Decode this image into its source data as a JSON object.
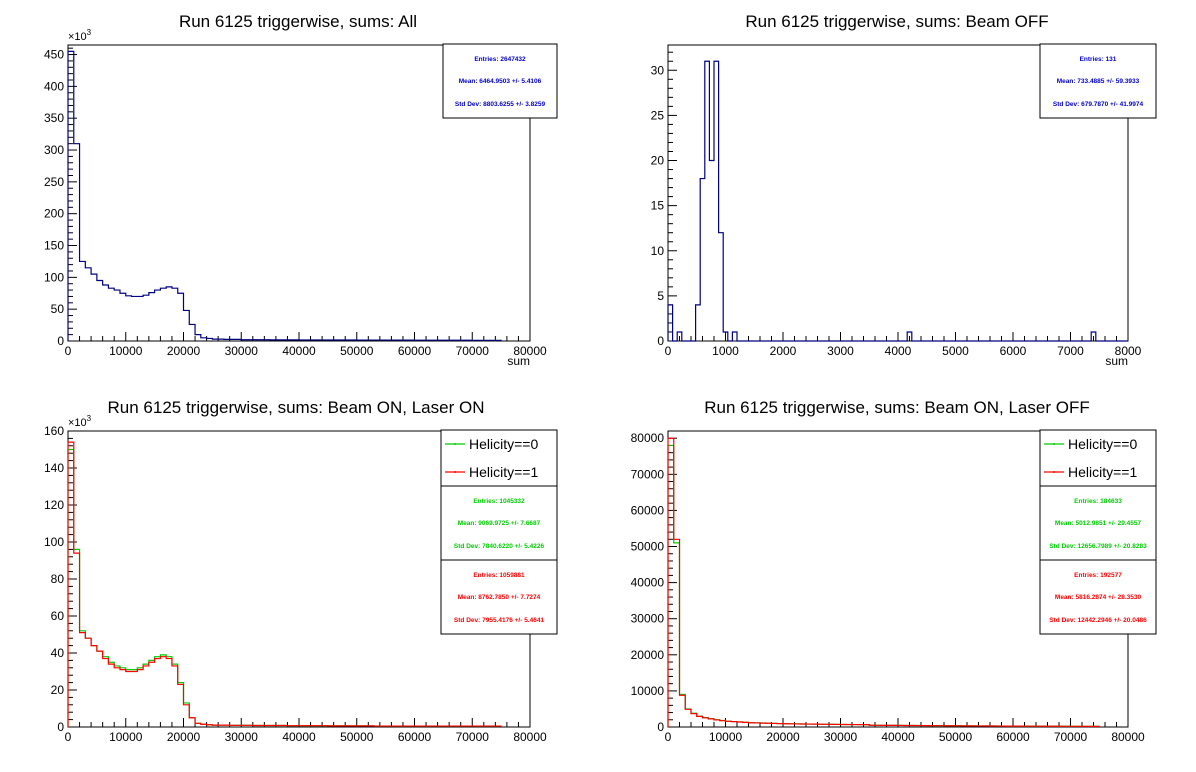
{
  "chart_data": [
    {
      "type": "histogram",
      "title": "Run 6125 triggerwise, sums: All",
      "xlabel": "sum",
      "ylabel": "",
      "xlim": [
        0,
        80000
      ],
      "ylim": [
        0,
        465
      ],
      "x_ticks": [
        "0",
        "10000",
        "20000",
        "30000",
        "40000",
        "50000",
        "60000",
        "70000",
        "80000"
      ],
      "y_ticks": [
        "0",
        "50",
        "100",
        "150",
        "200",
        "250",
        "300",
        "350",
        "400",
        "450"
      ],
      "exponent": "×10",
      "exponent_power": "3",
      "bin_start": 0,
      "bin_width": 1000,
      "series": [
        {
          "color": "#000080",
          "values": [
            455,
            310,
            125,
            115,
            105,
            95,
            88,
            83,
            80,
            75,
            71,
            70,
            70,
            72,
            76,
            80,
            83,
            85,
            83,
            75,
            48,
            26,
            10,
            5,
            4,
            3,
            3,
            2.5,
            2.5,
            2.5,
            2,
            2,
            2,
            2,
            2,
            1.8,
            1.8,
            1.8,
            1.8,
            1.8,
            1.7,
            1.7,
            1.7,
            1.7,
            1.7,
            1.6,
            1.6,
            1.6,
            1.6,
            1.6,
            1.5,
            1.5,
            1.5,
            1.5,
            1.5,
            1.4,
            1.4,
            1.4,
            1.4,
            1.4,
            1.3,
            1.3,
            1.3,
            1.3,
            1.3,
            1.2,
            1.2,
            1.2,
            1.2,
            1.2,
            1.1,
            1.1,
            1.1,
            1.1,
            1.1
          ]
        }
      ],
      "stats_boxes": [
        {
          "color": "#0000cc",
          "entries": "Entries: 2647432",
          "mean": "Mean: 6464.9503 +/- 5.4106",
          "stddev": "Std Dev: 8803.6255 +/- 3.8259"
        }
      ]
    },
    {
      "type": "histogram",
      "title": "Run 6125 triggerwise, sums: Beam OFF",
      "xlabel": "sum",
      "ylabel": "",
      "xlim": [
        0,
        8000
      ],
      "ylim": [
        0,
        32.8
      ],
      "x_ticks": [
        "0",
        "1000",
        "2000",
        "3000",
        "4000",
        "5000",
        "6000",
        "7000",
        "8000"
      ],
      "y_ticks": [
        "0",
        "5",
        "10",
        "15",
        "20",
        "25",
        "30"
      ],
      "bin_start": 0,
      "bin_width": 80,
      "series": [
        {
          "color": "#000080",
          "values": [
            4,
            0,
            1,
            0,
            0,
            0,
            4,
            18,
            31,
            20,
            31,
            12,
            1,
            0,
            1,
            0,
            0,
            0,
            0,
            0,
            0,
            0,
            0,
            0,
            0,
            0,
            0,
            0,
            0,
            0,
            0,
            0,
            0,
            0,
            0,
            0,
            0,
            0,
            0,
            0,
            0,
            0,
            0,
            0,
            0,
            0,
            0,
            0,
            0,
            0,
            0,
            0,
            1,
            0,
            0,
            0,
            0,
            0,
            0,
            0,
            0,
            0,
            0,
            0,
            0,
            0,
            0,
            0,
            0,
            0,
            0,
            0,
            0,
            0,
            0,
            0,
            0,
            0,
            0,
            0,
            0,
            0,
            0,
            0,
            0,
            0,
            0,
            0,
            0,
            0,
            0,
            0,
            1,
            0,
            0,
            0,
            0,
            0,
            0,
            0
          ]
        }
      ],
      "stats_boxes": [
        {
          "color": "#0000cc",
          "entries": "Entries: 131",
          "mean": "Mean: 733.4885 +/- 59.3933",
          "stddev": "Std Dev: 679.7870 +/- 41.9974"
        }
      ]
    },
    {
      "type": "histogram",
      "title": "Run 6125 triggerwise, sums: Beam ON, Laser ON",
      "xlabel": "",
      "ylabel": "",
      "xlim": [
        0,
        80000
      ],
      "ylim": [
        0,
        160
      ],
      "x_ticks": [
        "0",
        "10000",
        "20000",
        "30000",
        "40000",
        "50000",
        "60000",
        "70000",
        "80000"
      ],
      "y_ticks": [
        "0",
        "20",
        "40",
        "60",
        "80",
        "100",
        "120",
        "140",
        "160"
      ],
      "exponent": "×10",
      "exponent_power": "3",
      "bin_start": 0,
      "bin_width": 1000,
      "legend": [
        "Helicity==0",
        "Helicity==1"
      ],
      "series": [
        {
          "name": "Helicity==0",
          "color": "#00cc00",
          "values": [
            150,
            96,
            52,
            48,
            44,
            41,
            38,
            35,
            33,
            32,
            31,
            31,
            32,
            34,
            36,
            38,
            39,
            38,
            34,
            24,
            13,
            5,
            2,
            1.5,
            1.2,
            1,
            1,
            1,
            0.9,
            0.9,
            0.9,
            0.9,
            0.8,
            0.8,
            0.8,
            0.8,
            0.8,
            0.8,
            0.7,
            0.7,
            0.7,
            0.7,
            0.7,
            0.7,
            0.7,
            0.6,
            0.6,
            0.6,
            0.6,
            0.6,
            0.6,
            0.6,
            0.6,
            0.5,
            0.5,
            0.5,
            0.5,
            0.5,
            0.5,
            0.5,
            0.5,
            0.5,
            0.5,
            0.5,
            0.5,
            0.5,
            0.5,
            0.5,
            0.5,
            0.5,
            0.5,
            0.5,
            0.5,
            0.5,
            0.5
          ]
        },
        {
          "name": "Helicity==1",
          "color": "#ff0000",
          "values": [
            154,
            94,
            51,
            48,
            44,
            41,
            37,
            34,
            32,
            31,
            30,
            30,
            31,
            33,
            35,
            37,
            38,
            37,
            33,
            23,
            12,
            5,
            2,
            1.5,
            1.2,
            1,
            1,
            1,
            0.9,
            0.9,
            0.9,
            0.9,
            0.8,
            0.8,
            0.8,
            0.8,
            0.8,
            0.8,
            0.7,
            0.7,
            0.7,
            0.7,
            0.7,
            0.7,
            0.7,
            0.6,
            0.6,
            0.6,
            0.6,
            0.6,
            0.6,
            0.6,
            0.6,
            0.5,
            0.5,
            0.5,
            0.5,
            0.5,
            0.5,
            0.5,
            0.5,
            0.5,
            0.5,
            0.5,
            0.5,
            0.5,
            0.5,
            0.5,
            0.5,
            0.5,
            0.5,
            0.5,
            0.5,
            0.5,
            0.5
          ]
        }
      ],
      "stats_boxes": [
        {
          "color": "#00cc00",
          "entries": "Entries: 1045332",
          "mean": "Mean: 9069.9725 +/- 7.6687",
          "stddev": "Std Dev: 7840.6220 +/- 5.4226"
        },
        {
          "color": "#ff0000",
          "entries": "Entries: 1059881",
          "mean": "Mean: 8762.7850 +/- 7.7274",
          "stddev": "Std Dev: 7955.4176 +/- 5.4641"
        }
      ]
    },
    {
      "type": "histogram",
      "title": "Run 6125 triggerwise, sums: Beam ON, Laser OFF",
      "xlabel": "",
      "ylabel": "",
      "xlim": [
        0,
        80000
      ],
      "ylim": [
        0,
        82000
      ],
      "x_ticks": [
        "0",
        "10000",
        "20000",
        "30000",
        "40000",
        "50000",
        "60000",
        "70000",
        "80000"
      ],
      "y_ticks": [
        "0",
        "10000",
        "20000",
        "30000",
        "40000",
        "50000",
        "60000",
        "70000",
        "80000"
      ],
      "bin_start": 0,
      "bin_width": 1000,
      "legend": [
        "Helicity==0",
        "Helicity==1"
      ],
      "series": [
        {
          "name": "Helicity==0",
          "color": "#00cc00",
          "values": [
            78000,
            51000,
            9000,
            5000,
            3800,
            3000,
            2600,
            2300,
            2000,
            1800,
            1600,
            1500,
            1400,
            1300,
            1200,
            1150,
            1100,
            1050,
            1000,
            950,
            900,
            880,
            860,
            840,
            820,
            800,
            780,
            760,
            740,
            720,
            700,
            690,
            680,
            670,
            660,
            500,
            480,
            470,
            460,
            450,
            440,
            430,
            420,
            410,
            400,
            390,
            380,
            370,
            360,
            350,
            340,
            330,
            320,
            310,
            300,
            290,
            280,
            270,
            260,
            250,
            245,
            240,
            235,
            230,
            225,
            220,
            215,
            210,
            205,
            200,
            195,
            190,
            185,
            180,
            175
          ]
        },
        {
          "name": "Helicity==1",
          "color": "#ff0000",
          "values": [
            80000,
            52000,
            8800,
            4900,
            3700,
            2950,
            2550,
            2250,
            1950,
            1750,
            1580,
            1480,
            1380,
            1280,
            1180,
            1130,
            1080,
            1030,
            980,
            930,
            890,
            870,
            850,
            830,
            810,
            790,
            770,
            750,
            730,
            710,
            690,
            680,
            670,
            660,
            650,
            490,
            470,
            460,
            450,
            440,
            430,
            420,
            410,
            400,
            390,
            380,
            370,
            360,
            350,
            340,
            330,
            320,
            310,
            300,
            290,
            280,
            270,
            260,
            250,
            245,
            240,
            235,
            230,
            225,
            220,
            215,
            210,
            205,
            200,
            195,
            190,
            185,
            180,
            175,
            170
          ]
        }
      ],
      "stats_boxes": [
        {
          "color": "#00cc00",
          "entries": "Entries: 184633",
          "mean": "Mean: 5012.9851 +/- 29.4557",
          "stddev": "Std Dev: 12656.7989 +/- 20.8283"
        },
        {
          "color": "#ff0000",
          "entries": "Entries: 192577",
          "mean": "Mean: 5816.2874 +/- 28.3530",
          "stddev": "Std Dev: 12442.2946 +/- 20.0486"
        }
      ]
    }
  ]
}
